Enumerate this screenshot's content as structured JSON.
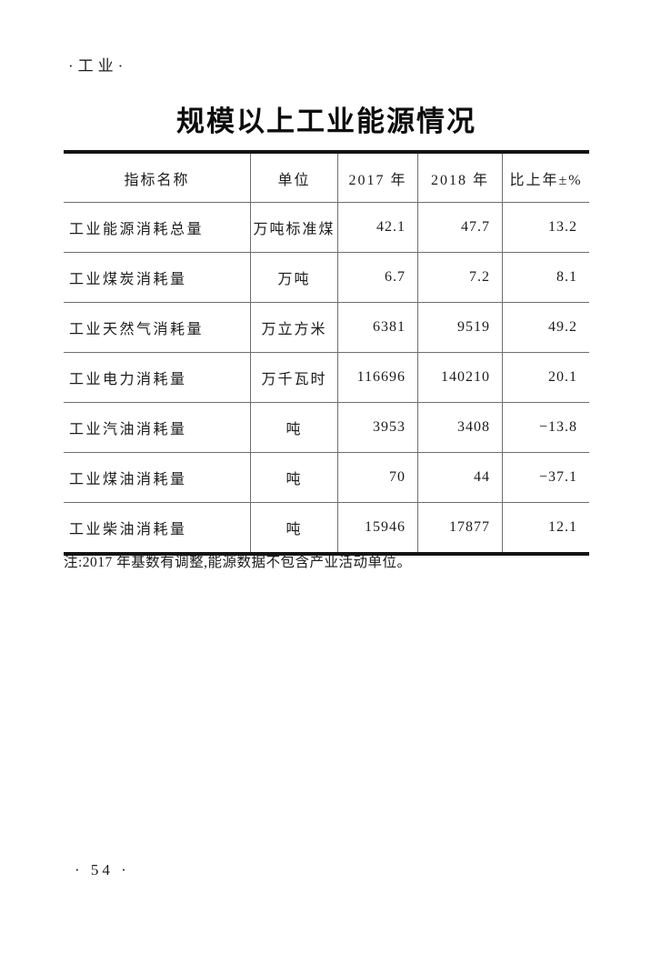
{
  "page": {
    "section_label": "·工业·",
    "title": "规模以上工业能源情况",
    "note": "注:2017 年基数有调整,能源数据不包含产业活动单位。",
    "page_number": "· 54 ·"
  },
  "table": {
    "headers": [
      "指标名称",
      "单位",
      "2017 年",
      "2018 年",
      "比上年±%"
    ],
    "rows": [
      {
        "name": "工业能源消耗总量",
        "unit": "万吨标准煤",
        "y2017": "42.1",
        "y2018": "47.7",
        "change": "13.2"
      },
      {
        "name": "工业煤炭消耗量",
        "unit": "万吨",
        "y2017": "6.7",
        "y2018": "7.2",
        "change": "8.1"
      },
      {
        "name": "工业天然气消耗量",
        "unit": "万立方米",
        "y2017": "6381",
        "y2018": "9519",
        "change": "49.2"
      },
      {
        "name": "工业电力消耗量",
        "unit": "万千瓦时",
        "y2017": "116696",
        "y2018": "140210",
        "change": "20.1"
      },
      {
        "name": "工业汽油消耗量",
        "unit": "吨",
        "y2017": "3953",
        "y2018": "3408",
        "change": "−13.8"
      },
      {
        "name": "工业煤油消耗量",
        "unit": "吨",
        "y2017": "70",
        "y2018": "44",
        "change": "−37.1"
      },
      {
        "name": "工业柴油消耗量",
        "unit": "吨",
        "y2017": "15946",
        "y2018": "17877",
        "change": "12.1"
      }
    ]
  },
  "colors": {
    "background": "#ffffff",
    "text": "#1c1c1c",
    "thick_rule": "#141414",
    "thin_rule": "#6e6e6e"
  }
}
